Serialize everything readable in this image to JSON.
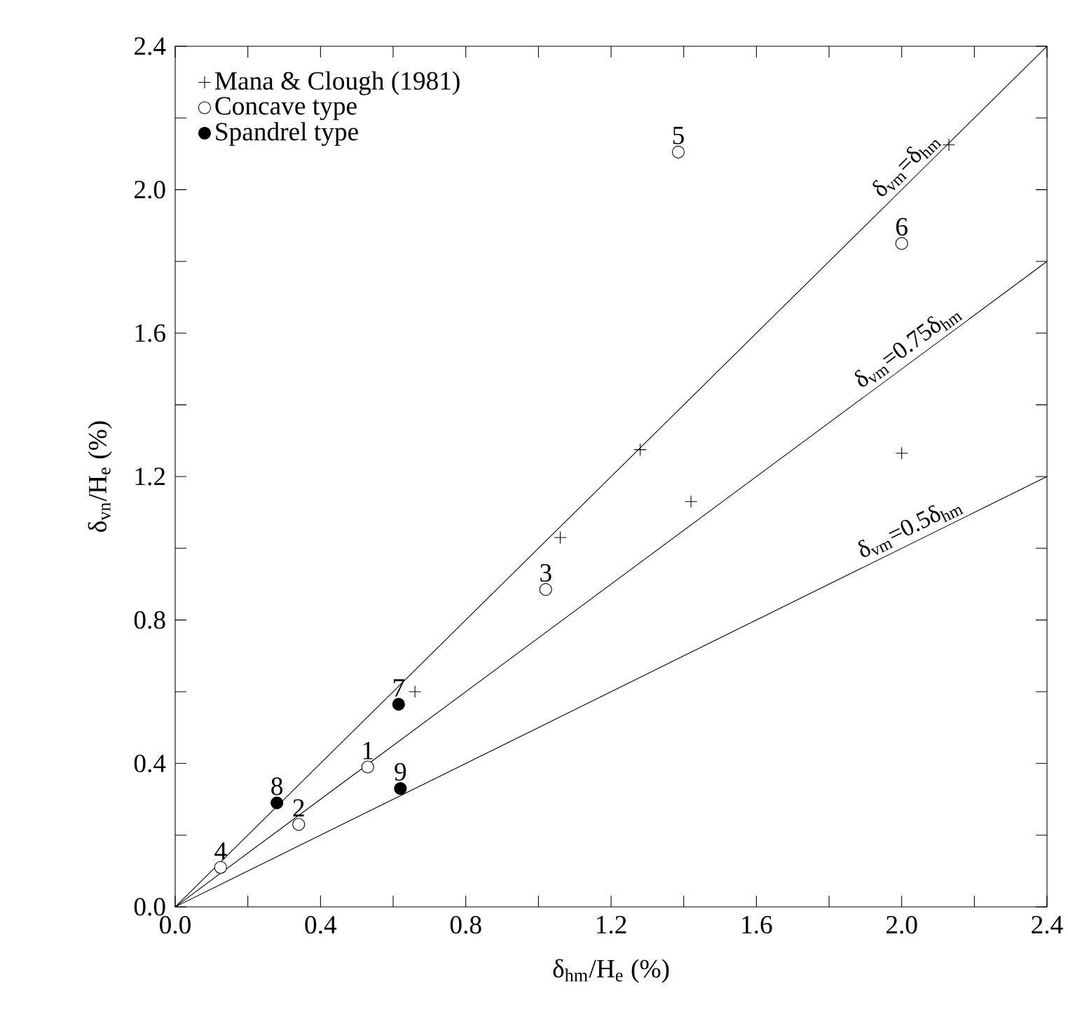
{
  "chart_data": {
    "type": "scatter",
    "xlabel": "δ$_{hm}$/H$_{e}$ (%)",
    "ylabel": "δ$_{vn}$/H$_{e}$ (%)",
    "xlim": [
      0,
      2.4
    ],
    "ylim": [
      0,
      2.4
    ],
    "xticks": [
      {
        "value": 0,
        "label": "0.0"
      },
      {
        "value": 0.2,
        "label": null
      },
      0.4,
      {
        "value": 0.6,
        "label": null
      },
      0.8,
      {
        "value": 1.0,
        "label": null
      },
      1.2,
      {
        "value": 1.4,
        "label": null
      },
      1.6,
      {
        "value": 1.8,
        "label": null
      },
      {
        "value": 2.0,
        "label": "2.0"
      },
      {
        "value": 2.2,
        "label": null
      },
      2.4
    ],
    "yticks": [
      {
        "value": 0,
        "label": "0.0"
      },
      {
        "value": 0.2,
        "label": null
      },
      0.4,
      {
        "value": 0.6,
        "label": null
      },
      0.8,
      {
        "value": 1.0,
        "label": null
      },
      1.2,
      {
        "value": 1.4,
        "label": null
      },
      1.6,
      {
        "value": 1.8,
        "label": null
      },
      {
        "value": 2.0,
        "label": "2.0"
      },
      {
        "value": 2.2,
        "label": null
      },
      2.4
    ],
    "grid": false,
    "legend": "top left",
    "series": [
      {
        "name": "Mana & Clough (1981)",
        "color": "#000000",
        "marker": "cross",
        "x": [
          0.66,
          1.06,
          1.28,
          1.42,
          2.0,
          2.13
        ],
        "values": [
          0.6,
          1.03,
          1.275,
          1.13,
          1.265,
          2.125
        ]
      },
      {
        "name": "Concave type",
        "color": "#ffffff",
        "marker": "circle",
        "x": [
          0.53,
          0.34,
          1.02,
          0.125,
          1.385,
          2.0
        ],
        "values": [
          0.39,
          0.23,
          0.885,
          0.11,
          2.105,
          1.85
        ]
      },
      {
        "name": "Spandrel type",
        "color": "#000000",
        "marker": "circle",
        "x": [
          0.615,
          0.28,
          0.62
        ],
        "values": [
          0.565,
          0.29,
          0.33
        ]
      },
      {
        "name": "δ$_{vm}$=δ$_{hm}$",
        "type": "line",
        "color": "#000000",
        "marker": "none",
        "x": [
          0,
          2.4
        ],
        "values": [
          0,
          2.4
        ]
      },
      {
        "name": "δ$_{vm}$=0.75δ$_{hm}$",
        "type": "line",
        "color": "#000000",
        "marker": "none",
        "x": [
          0,
          2.4
        ],
        "values": [
          0,
          1.8
        ]
      },
      {
        "name": "δ$_{vm}$=0.5δ$_{hm}$",
        "type": "line",
        "color": "#000000",
        "marker": "none",
        "x": [
          0,
          2.4
        ],
        "values": [
          0,
          1.2
        ]
      }
    ],
    "annotations": [
      {
        "text": "1",
        "x": 0.53,
        "y": 0.39
      },
      {
        "text": "2",
        "x": 0.34,
        "y": 0.23
      },
      {
        "text": "3",
        "x": 1.02,
        "y": 0.885
      },
      {
        "text": "4",
        "x": 0.125,
        "y": 0.11
      },
      {
        "text": "5",
        "x": 1.385,
        "y": 2.105
      },
      {
        "text": "6",
        "x": 2.0,
        "y": 1.85
      },
      {
        "text": "7",
        "x": 0.615,
        "y": 0.565
      },
      {
        "text": "8",
        "x": 0.28,
        "y": 0.29
      },
      {
        "text": "9",
        "x": 0.62,
        "y": 0.33
      }
    ]
  }
}
